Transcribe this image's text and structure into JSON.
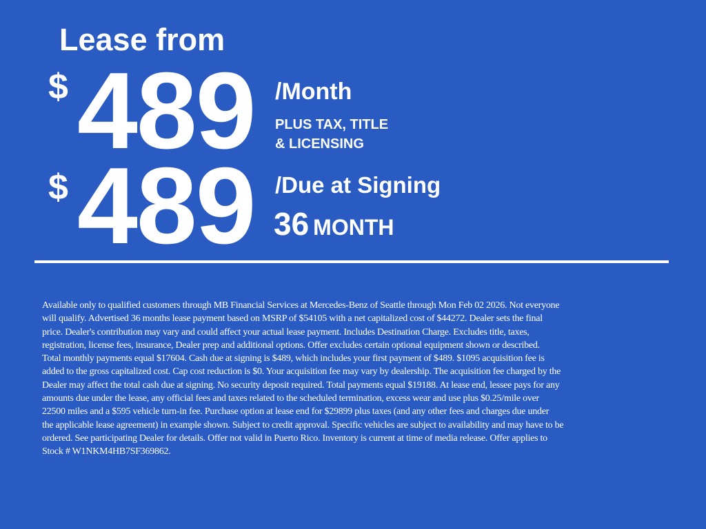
{
  "headline": "Lease from",
  "monthly": {
    "currency": "$",
    "amount": "489",
    "label": "/Month",
    "note_line1": "PLUS TAX, TITLE",
    "note_line2": "& LICENSING"
  },
  "due_at_signing": {
    "currency": "$",
    "amount": "489",
    "label": "/Due at Signing"
  },
  "term": {
    "number": "36",
    "unit": "MONTH"
  },
  "colors": {
    "background": "#2a5bc3",
    "text": "#ffffff"
  },
  "disclaimer_lines": [
    "Available only to qualified customers through MB Financial Services at Mercedes-Benz of Seattle through Mon Feb 02 2026. Not everyone",
    "will qualify. Advertised 36 months lease payment based on MSRP of $54105 with a net capitalized cost of $44272. Dealer sets the final",
    "price. Dealer's contribution may vary and could affect your actual lease payment. Includes Destination Charge. Excludes title, taxes,",
    "registration, license fees, insurance, Dealer prep and additional options. Offer excludes certain optional equipment shown or described.",
    "Total monthly payments equal $17604. Cash due at signing is $489, which includes your first payment of $489. $1095 acquisition fee is",
    "added to the gross capitalized cost. Cap cost reduction is $0. Your acquisition fee may vary by dealership. The acquisition fee charged by the",
    "Dealer may affect the total cash due at signing. No security deposit required. Total payments equal $19188. At lease end, lessee pays for any",
    "amounts due under the lease, any official fees and taxes related to the scheduled termination, excess wear and use plus $0.25/mile over",
    "22500 miles and a $595 vehicle turn-in fee. Purchase option at lease end for $29899 plus taxes (and any other fees and charges due under",
    "the applicable lease agreement) in example shown. Subject to credit approval. Specific vehicles are subject to availability and may have to be",
    "ordered. See participating Dealer for details. Offer not valid in Puerto Rico. Inventory is current at time of media release. Offer applies to",
    "Stock # W1NKM4HB7SF369862."
  ]
}
